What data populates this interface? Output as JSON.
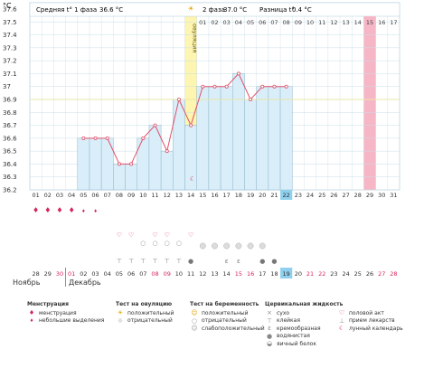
{
  "chart_data": {
    "type": "line",
    "yunit": "°C",
    "ylim": [
      36.2,
      37.6
    ],
    "yticks": [
      "37.6",
      "37.5",
      "37.4",
      "37.3",
      "37.2",
      "37.1",
      "37",
      "36.9",
      "36.8",
      "36.7",
      "36.6",
      "36.5",
      "36.4",
      "36.3",
      "36.2"
    ],
    "days": [
      "01",
      "02",
      "03",
      "04",
      "05",
      "06",
      "07",
      "08",
      "09",
      "10",
      "11",
      "12",
      "13",
      "14",
      "15",
      "16",
      "17",
      "18",
      "19",
      "20",
      "21",
      "22",
      "23",
      "24",
      "25",
      "26",
      "27",
      "28",
      "29",
      "30",
      "31"
    ],
    "temps": [
      null,
      null,
      null,
      null,
      36.6,
      36.6,
      36.6,
      36.4,
      36.4,
      36.6,
      36.7,
      36.5,
      36.9,
      36.7,
      37.0,
      37.0,
      37.0,
      37.1,
      36.9,
      37.0,
      37.0,
      37.0,
      null,
      null,
      null,
      null,
      null,
      null,
      null,
      null,
      null
    ],
    "coverline": 36.9,
    "header": {
      "phase1": "Средняя t° 1 фаза",
      "phase1_value": "36.6 °C",
      "phase2": "2 фаза",
      "phase2_value": "37.0 °C",
      "diff": "Разница t°",
      "diff_value": "0.4 °C"
    },
    "ovulation_day": 14,
    "ovulation_label": "овуляция",
    "today_day": 22,
    "period_day": 29,
    "menstruation_drops": [
      "big",
      "big",
      "big",
      "big",
      "small",
      "small"
    ],
    "hearts_days": [
      8,
      9,
      11,
      12,
      14
    ],
    "intercourse_days": [
      10,
      11,
      12,
      13
    ],
    "pregnancy_test_days": [
      15,
      16,
      17,
      18,
      19,
      20
    ],
    "fluid_marks": [
      {
        "day": 8,
        "glyph": "⊤"
      },
      {
        "day": 9,
        "glyph": "⊤"
      },
      {
        "day": 10,
        "glyph": "⊤"
      },
      {
        "day": 11,
        "glyph": "⊤"
      },
      {
        "day": 12,
        "glyph": "⊤"
      },
      {
        "day": 13,
        "glyph": "⊤"
      },
      {
        "day": 14,
        "glyph": "●"
      },
      {
        "day": 17,
        "glyph": "ε"
      },
      {
        "day": 18,
        "glyph": "ε"
      },
      {
        "day": 20,
        "glyph": "●"
      },
      {
        "day": 21,
        "glyph": "●"
      }
    ],
    "calendar_dates": [
      "28",
      "29",
      "30",
      "01",
      "02",
      "03",
      "04",
      "05",
      "06",
      "07",
      "08",
      "09",
      "10",
      "11",
      "12",
      "13",
      "14",
      "15",
      "16",
      "17",
      "18",
      "19",
      "20",
      "21",
      "22",
      "23",
      "24",
      "25",
      "26",
      "27",
      "28"
    ],
    "calendar_red_idx": [
      2,
      3,
      10,
      11,
      17,
      18,
      23,
      24,
      29,
      30
    ],
    "calendar_today_idx": 21,
    "months": {
      "prev": "Ноябрь",
      "next": "Декабрь"
    }
  },
  "legend": {
    "menstruation": {
      "title": "Менструация",
      "items": [
        "менструация",
        "небольшие выделения"
      ]
    },
    "ovulation_test": {
      "title": "Тест на овуляцию",
      "items": [
        "положительный",
        "отрицательный"
      ]
    },
    "pregnancy_test": {
      "title": "Тест на беременность",
      "items": [
        "положительный",
        "отрицательный",
        "слабоположительный"
      ]
    },
    "cervical": {
      "title": "Цервикальная жидкость",
      "items": [
        "сухо",
        "клейкая",
        "кремообразная",
        "водянистая",
        "яичный белок"
      ]
    },
    "other": {
      "items": [
        "половой акт",
        "прием лекарств",
        "лунный календарь"
      ]
    }
  },
  "colors": {
    "bar": "#d9eef9",
    "bar_border": "#8fb7cc",
    "line": "#e0506a",
    "ovulation": "#fdf5b0",
    "today": "#8fd0ee",
    "period": "#f7b6c6",
    "grid": "#c9dde8",
    "red": "#d9245a",
    "coverline": "#e9e7a8"
  }
}
